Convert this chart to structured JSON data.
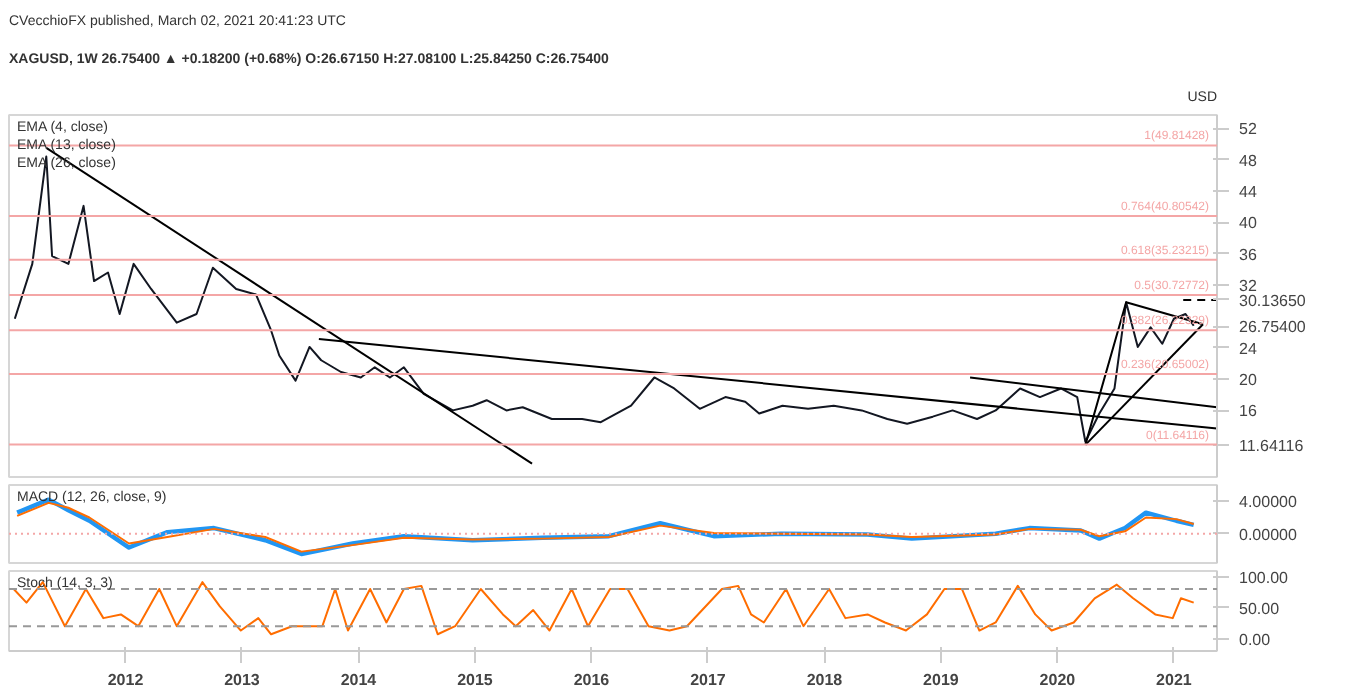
{
  "chart_data": [
    {
      "type": "line",
      "title": "CVecchioFX published, March 02, 2021 20:41:23 UTC",
      "subtitle": "XAGUSD, 1W 26.75400 ▲ +0.18200 (+0.68%) O:26.67150 H:27.08100 L:25.84250 C:26.75400",
      "ylabel": "USD",
      "annotations": [
        "EMA (4, close)",
        "EMA (13, close)",
        "EMA (26, close)"
      ],
      "xlim": [
        2011.0,
        2021.37
      ],
      "ylim": [
        7.5,
        53.7
      ],
      "yticks": [
        16,
        20,
        24,
        32,
        36,
        40,
        44,
        48,
        52,
        {
          "value": 11.64116,
          "label": "11.64116"
        },
        {
          "value": 26.754,
          "label": "26.75400"
        },
        {
          "value": 30.1365,
          "label": "30.13650"
        }
      ],
      "tick_labels": "y",
      "grid": false,
      "series": [
        {
          "color": "#131722",
          "x": [
            2011.05,
            2011.2,
            2011.32,
            2011.37,
            2011.51,
            2011.64,
            2011.73,
            2011.85,
            2011.95,
            2012.07,
            2012.22,
            2012.44,
            2012.61,
            2012.75,
            2012.95,
            2013.12,
            2013.25,
            2013.32,
            2013.46,
            2013.58,
            2013.68,
            2013.85,
            2014.02,
            2014.14,
            2014.27,
            2014.39,
            2014.56,
            2014.81,
            2014.98,
            2015.1,
            2015.27,
            2015.41,
            2015.66,
            2015.92,
            2016.08,
            2016.34,
            2016.54,
            2016.71,
            2016.93,
            2017.15,
            2017.32,
            2017.44,
            2017.64,
            2017.86,
            2018.08,
            2018.32,
            2018.54,
            2018.71,
            2018.93,
            2019.1,
            2019.31,
            2019.47,
            2019.68,
            2019.85,
            2020.03,
            2020.17,
            2020.24,
            2020.36,
            2020.49,
            2020.59,
            2020.69,
            2020.8,
            2020.9,
            2021.0,
            2021.1,
            2021.17
          ],
          "values": [
            27.7,
            34.7,
            48.4,
            35.7,
            34.7,
            42.1,
            32.5,
            33.6,
            28.3,
            34.7,
            31.5,
            27.2,
            28.3,
            34.2,
            31.5,
            30.8,
            26.2,
            23.0,
            19.8,
            24.1,
            22.4,
            20.9,
            20.2,
            21.5,
            20.2,
            21.5,
            18.1,
            16.0,
            16.6,
            17.3,
            16.0,
            16.4,
            14.9,
            14.9,
            14.5,
            16.6,
            20.2,
            18.8,
            16.2,
            17.7,
            17.1,
            15.6,
            16.6,
            16.2,
            16.6,
            16.0,
            14.9,
            14.3,
            15.2,
            16.0,
            14.9,
            16.0,
            18.8,
            17.7,
            18.8,
            17.7,
            12.0,
            15.6,
            18.8,
            29.8,
            24.1,
            26.6,
            24.5,
            27.7,
            28.3,
            26.8
          ]
        },
        {
          "color": "#000000",
          "x": [
            2011.32,
            2015.49
          ],
          "values": [
            49.5,
            9.2
          ]
        },
        {
          "color": "#000000",
          "x": [
            2013.66,
            2021.37
          ],
          "values": [
            25.1,
            13.7
          ]
        },
        {
          "color": "#000000",
          "x": [
            2019.25,
            2021.37
          ],
          "values": [
            20.2,
            16.4
          ]
        },
        {
          "color": "#000000",
          "x": [
            2020.24,
            2020.59,
            2021.25
          ],
          "values": [
            11.6,
            29.8,
            27.0
          ]
        },
        {
          "color": "#000000",
          "x": [
            2020.24,
            2021.25
          ],
          "values": [
            11.6,
            27.0
          ]
        },
        {
          "color": "#000000",
          "line_style": "dashed",
          "x": [
            2021.08,
            2021.37
          ],
          "values": [
            30.1,
            30.1
          ]
        }
      ],
      "ref_lines": [
        {
          "axis": "y",
          "value": 49.81428,
          "label": "1(49.81428)",
          "color": "#f4a6a6"
        },
        {
          "axis": "y",
          "value": 40.80542,
          "label": "0.764(40.80542)",
          "color": "#f4a6a6"
        },
        {
          "axis": "y",
          "value": 35.23215,
          "label": "0.618(35.23215)",
          "color": "#f4a6a6"
        },
        {
          "axis": "y",
          "value": 30.72772,
          "label": "0.5(30.72772)",
          "color": "#f4a6a6"
        },
        {
          "axis": "y",
          "value": 26.22329,
          "label": "0.382(26.22329)",
          "color": "#f4a6a6"
        },
        {
          "axis": "y",
          "value": 20.65002,
          "label": "0.236(20.65002)",
          "color": "#f4a6a6"
        },
        {
          "axis": "y",
          "value": 11.64116,
          "label": "0(11.64116)",
          "color": "#f4a6a6"
        }
      ]
    },
    {
      "type": "line",
      "title": "MACD (12, 26, close, 9)",
      "xlim": [
        2011.0,
        2021.37
      ],
      "ylim": [
        -3.6,
        6.0
      ],
      "yticks": [
        {
          "value": 0,
          "label": "0.00000"
        },
        {
          "value": 4,
          "label": "4.00000"
        }
      ],
      "tick_labels": "y",
      "grid": false,
      "series": [
        {
          "color": "#2196f3",
          "x": [
            2011.07,
            2011.34,
            2011.51,
            2011.69,
            2012.03,
            2012.36,
            2012.76,
            2013.2,
            2013.51,
            2013.95,
            2014.39,
            2014.98,
            2015.58,
            2016.15,
            2016.59,
            2017.05,
            2017.63,
            2018.37,
            2018.75,
            2019.47,
            2019.76,
            2020.2,
            2020.36,
            2020.58,
            2020.76,
            2021.02,
            2021.17
          ],
          "values": [
            2.6,
            4.2,
            2.9,
            1.6,
            -1.7,
            0.2,
            0.7,
            -0.8,
            -2.5,
            -1.2,
            -0.3,
            -0.8,
            -0.5,
            -0.3,
            1.3,
            -0.3,
            0,
            -0.1,
            -0.6,
            0,
            0.7,
            0.4,
            -0.6,
            0.7,
            2.6,
            1.6,
            1.1
          ]
        },
        {
          "color": "#ff6d00",
          "x": [
            2011.07,
            2011.34,
            2011.51,
            2011.69,
            2012.03,
            2012.36,
            2012.76,
            2013.2,
            2013.51,
            2013.95,
            2014.39,
            2014.98,
            2015.58,
            2016.15,
            2016.59,
            2017.05,
            2017.63,
            2018.37,
            2018.75,
            2019.47,
            2019.76,
            2020.2,
            2020.36,
            2020.58,
            2020.76,
            2021.02,
            2021.17
          ],
          "values": [
            2.2,
            3.8,
            3.2,
            2.0,
            -1.2,
            -0.4,
            0.6,
            -0.4,
            -2.2,
            -1.4,
            -0.5,
            -0.7,
            -0.6,
            -0.4,
            1.0,
            0.1,
            0,
            -0.1,
            -0.4,
            -0.1,
            0.6,
            0.5,
            -0.3,
            0.3,
            2.0,
            1.8,
            1.2
          ]
        }
      ],
      "ref_lines": [
        {
          "axis": "y",
          "value": 0,
          "color": "#f4a6a6",
          "line_style": "dotted"
        }
      ]
    },
    {
      "type": "line",
      "title": "Stoch (14, 3, 3)",
      "xlim": [
        2011.0,
        2021.37
      ],
      "ylim": [
        -20,
        109
      ],
      "xticks": [
        2012,
        2013,
        2014,
        2015,
        2016,
        2017,
        2018,
        2019,
        2020,
        2021
      ],
      "yticks": [
        {
          "value": 0,
          "label": "0.00"
        },
        {
          "value": 50,
          "label": "50.00"
        },
        {
          "value": 100,
          "label": "100.00"
        }
      ],
      "grid": false,
      "series": [
        {
          "color": "#ff6d00",
          "x": [
            2011.04,
            2011.15,
            2011.29,
            2011.48,
            2011.66,
            2011.81,
            2011.96,
            2012.11,
            2012.29,
            2012.44,
            2012.66,
            2012.81,
            2012.99,
            2013.14,
            2013.25,
            2013.43,
            2013.69,
            2013.8,
            2013.91,
            2014.1,
            2014.24,
            2014.39,
            2014.54,
            2014.68,
            2014.83,
            2015.05,
            2015.24,
            2015.35,
            2015.5,
            2015.64,
            2015.83,
            2015.97,
            2016.16,
            2016.31,
            2016.49,
            2016.67,
            2016.82,
            2017.12,
            2017.26,
            2017.37,
            2017.48,
            2017.67,
            2017.82,
            2018.04,
            2018.18,
            2018.37,
            2018.52,
            2018.7,
            2018.88,
            2019.03,
            2019.18,
            2019.33,
            2019.47,
            2019.66,
            2019.81,
            2019.95,
            2020.14,
            2020.32,
            2020.51,
            2020.65,
            2020.84,
            2020.99,
            2021.06,
            2021.17
          ],
          "values": [
            80,
            58,
            91,
            20,
            80,
            33,
            39,
            20,
            80,
            20,
            91,
            52,
            13,
            33,
            7,
            20,
            20,
            80,
            13,
            80,
            26,
            80,
            85,
            7,
            20,
            80,
            39,
            20,
            46,
            13,
            80,
            20,
            80,
            80,
            20,
            13,
            20,
            80,
            85,
            39,
            26,
            80,
            20,
            80,
            33,
            39,
            26,
            13,
            39,
            80,
            80,
            13,
            26,
            85,
            39,
            13,
            26,
            65,
            87,
            65,
            39,
            33,
            65,
            58
          ]
        }
      ],
      "ref_lines": [
        {
          "axis": "y",
          "value": 80,
          "color": "#999999",
          "line_style": "dashed"
        },
        {
          "axis": "y",
          "value": 20,
          "color": "#999999",
          "line_style": "dashed"
        }
      ]
    }
  ]
}
